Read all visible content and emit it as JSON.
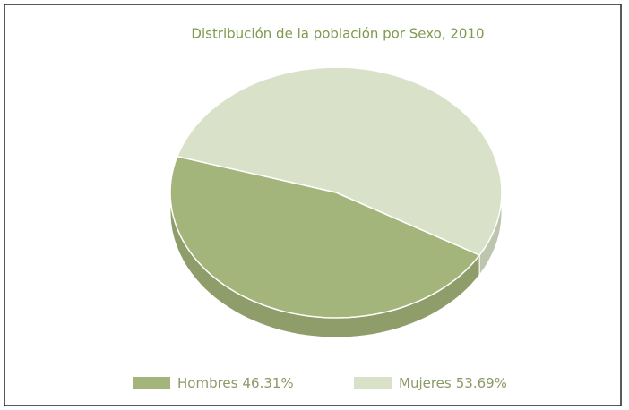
{
  "chart_data": {
    "type": "pie",
    "title": "Distribución de la población por Sexo, 2010",
    "categories": [
      "Hombres",
      "Mujeres"
    ],
    "values": [
      46.31,
      53.69
    ],
    "value_labels": [
      "46.31%",
      "53.69%"
    ],
    "colors": [
      "#a4b57b",
      "#d9e2c8"
    ],
    "legend": "bottom"
  }
}
